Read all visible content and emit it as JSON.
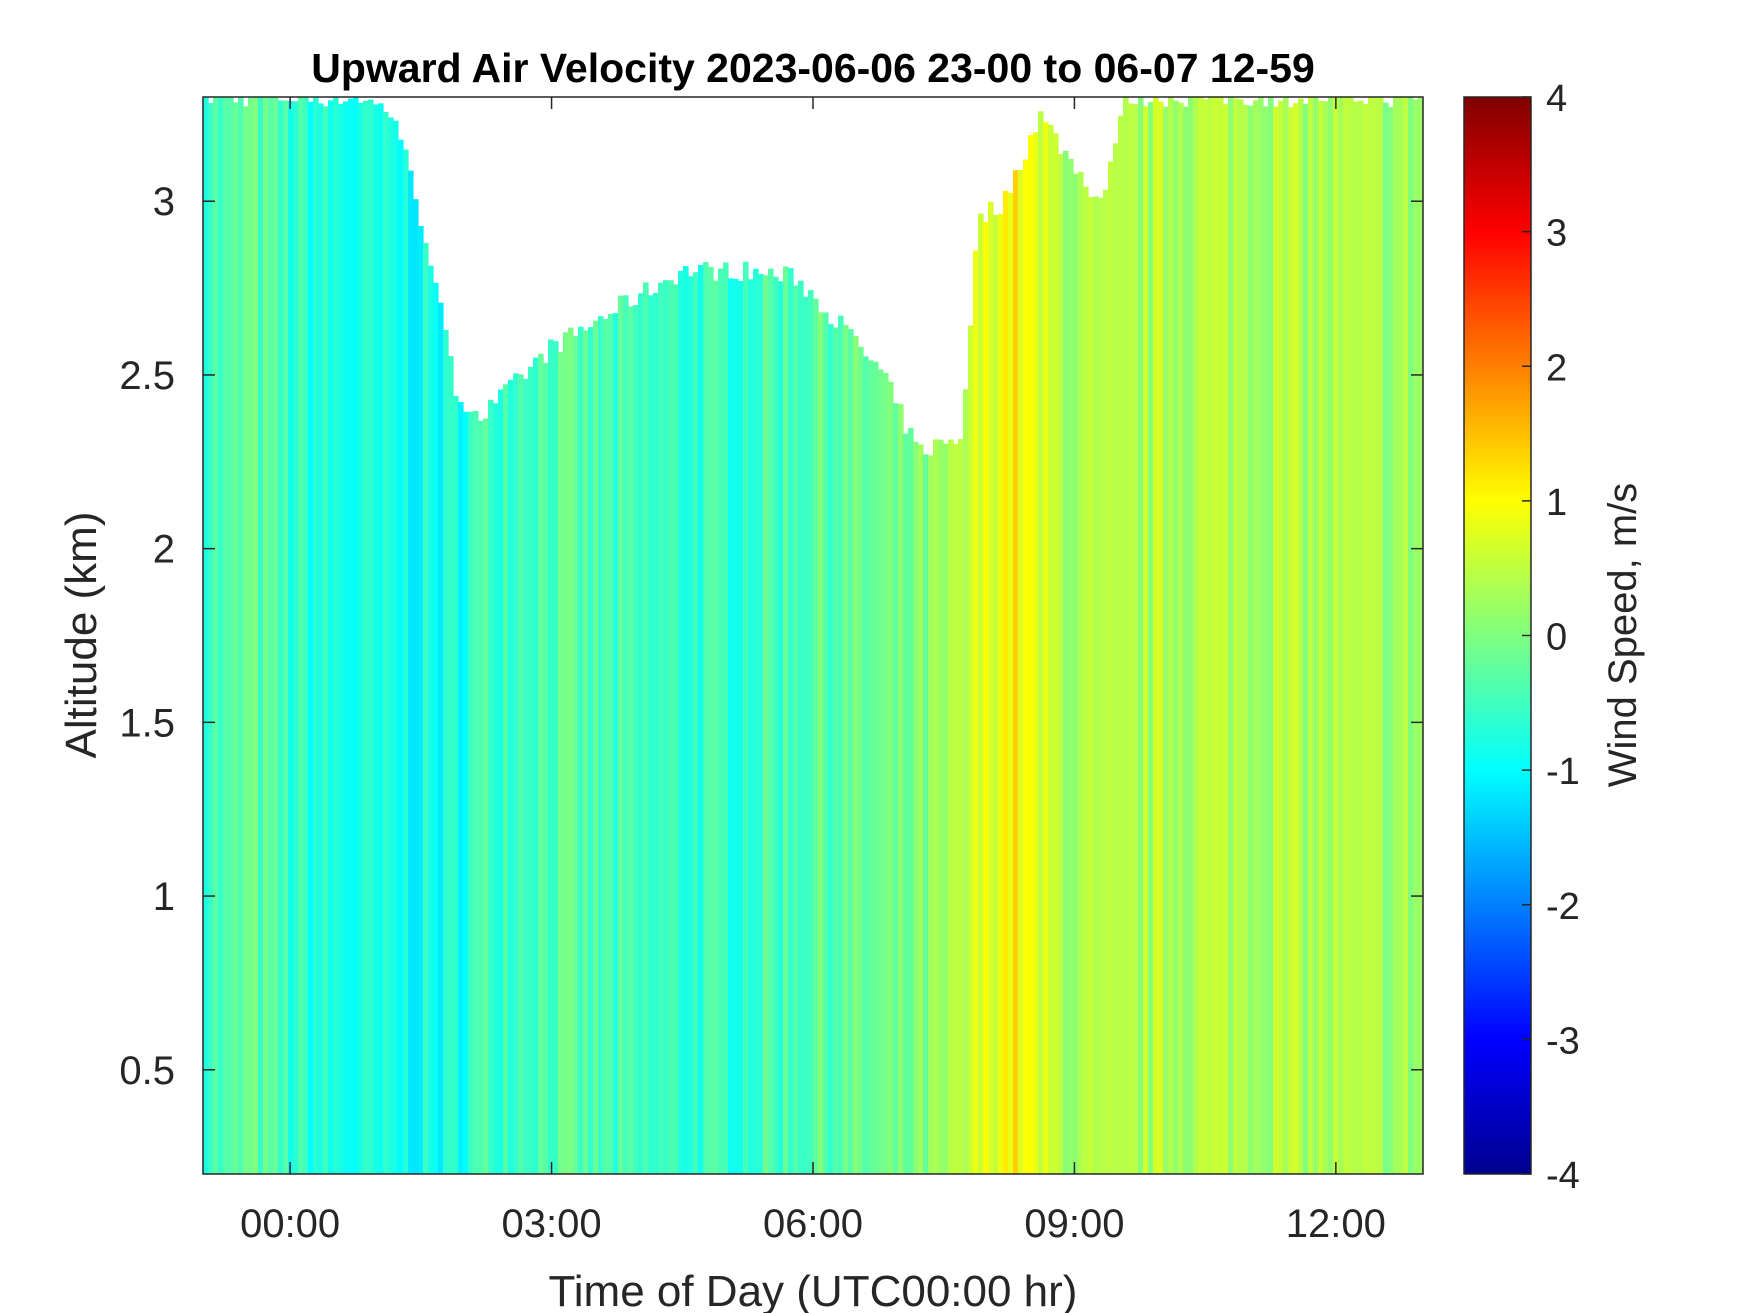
{
  "chart_data": {
    "type": "heatmap",
    "title": "Upward Air Velocity 2023-06-06 23-00 to 06-07 12-59",
    "xlabel": "Time of Day (UTC00:00 hr)",
    "ylabel": "Altitude (km)",
    "x_ticks": [
      "00:00",
      "03:00",
      "06:00",
      "09:00",
      "12:00"
    ],
    "x_tick_values_hours": [
      0,
      3,
      6,
      9,
      12
    ],
    "xlim_hours": [
      -1.0,
      13.0
    ],
    "y_ticks": [
      "0.5",
      "1",
      "1.5",
      "2",
      "2.5",
      "3"
    ],
    "y_tick_values": [
      0.5,
      1,
      1.5,
      2,
      2.5,
      3
    ],
    "ylim": [
      0.2,
      3.3
    ],
    "colorbar": {
      "label": "Wind Speed, m/s",
      "ticks": [
        "-4",
        "-3",
        "-2",
        "-1",
        "0",
        "1",
        "2",
        "3",
        "4"
      ],
      "tick_values": [
        -4,
        -3,
        -2,
        -1,
        0,
        1,
        2,
        3,
        4
      ],
      "range": [
        -4,
        4
      ],
      "colormap": "jet"
    },
    "grid": false,
    "velocity_profile_by_time": {
      "time_hours": [
        -1.0,
        -0.7,
        -0.5,
        0.0,
        0.5,
        1.0,
        1.3,
        1.8,
        2.2,
        3.0,
        4.0,
        5.0,
        6.0,
        7.0,
        7.6,
        8.0,
        8.3,
        8.6,
        9.0,
        9.5,
        10.0,
        11.0,
        12.0,
        13.0
      ],
      "mean_velocity_m_s": [
        -0.4,
        -0.5,
        -0.2,
        -0.6,
        -0.8,
        -0.9,
        -0.9,
        -0.9,
        -0.5,
        -0.3,
        -0.6,
        -0.6,
        -0.3,
        -0.2,
        0.2,
        0.8,
        1.1,
        0.6,
        0.3,
        0.2,
        0.4,
        0.4,
        0.3,
        0.2
      ]
    },
    "data_top_altitude_km_by_time": {
      "time_hours": [
        -1.0,
        0.5,
        0.8,
        1.2,
        1.6,
        1.9,
        2.2,
        2.6,
        3.0,
        3.3,
        3.8,
        4.5,
        5.2,
        5.8,
        6.3,
        6.8,
        7.2,
        7.7,
        7.9,
        8.2,
        8.6,
        9.0,
        9.3,
        9.6,
        10.0,
        11.0,
        12.0,
        13.0
      ],
      "top_km": [
        3.3,
        3.3,
        3.3,
        3.25,
        2.85,
        2.45,
        2.38,
        2.48,
        2.58,
        2.62,
        2.7,
        2.8,
        2.8,
        2.78,
        2.65,
        2.5,
        2.28,
        2.32,
        2.95,
        3.0,
        3.25,
        3.1,
        3.0,
        3.3,
        3.3,
        3.3,
        3.3,
        3.3
      ]
    }
  }
}
